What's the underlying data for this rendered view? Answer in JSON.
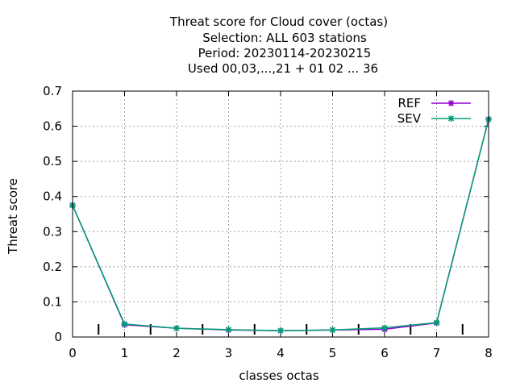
{
  "chart_data": {
    "type": "line",
    "title_lines": [
      "Threat score  for Cloud cover (octas)",
      "Selection: ALL    603 stations",
      "Period: 20230114-20230215",
      "Used  00,03,...,21  + 01 02 ... 36"
    ],
    "xlabel": "classes octas",
    "ylabel": "Threat score",
    "xlim": [
      0,
      8
    ],
    "ylim": [
      0,
      0.7
    ],
    "xticks": [
      "0",
      "1",
      "2",
      "3",
      "4",
      "5",
      "6",
      "7",
      "8"
    ],
    "yticks": [
      "0",
      "0.1",
      "0.2",
      "0.3",
      "0.4",
      "0.5",
      "0.6",
      "0.7"
    ],
    "grid": true,
    "legend_position": "top-right",
    "x": [
      0,
      1,
      2,
      3,
      4,
      5,
      6,
      7,
      8
    ],
    "series": [
      {
        "name": "REF",
        "color": "#9400d3",
        "values": [
          0.375,
          0.035,
          0.025,
          0.02,
          0.018,
          0.02,
          0.022,
          0.04,
          0.62
        ]
      },
      {
        "name": "SEV",
        "color": "#009e73",
        "values": [
          0.375,
          0.037,
          0.025,
          0.021,
          0.018,
          0.02,
          0.026,
          0.041,
          0.62
        ]
      }
    ]
  }
}
